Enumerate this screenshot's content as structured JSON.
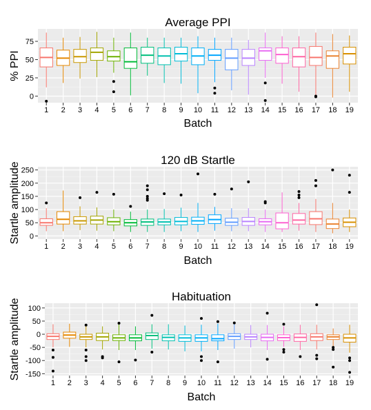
{
  "chart_data": [
    {
      "type": "boxplot",
      "title": "Average PPI",
      "xlabel": "Batch",
      "ylabel": "% PPI",
      "categories": [
        "1",
        "2",
        "3",
        "4",
        "5",
        "6",
        "7",
        "8",
        "9",
        "10",
        "11",
        "12",
        "13",
        "14",
        "15",
        "16",
        "17",
        "18",
        "19"
      ],
      "yticks": [
        0,
        25,
        50,
        75
      ],
      "ytick_labels": [
        "0",
        "25",
        "50",
        "75"
      ],
      "ylim": [
        -9,
        92
      ],
      "grid": true,
      "boxes": [
        {
          "min": 12,
          "q1": 40,
          "median": 53,
          "q3": 66,
          "max": 87,
          "outliers": [
            -7
          ]
        },
        {
          "min": 18,
          "q1": 42,
          "median": 52,
          "q3": 63,
          "max": 80,
          "outliers": []
        },
        {
          "min": 24,
          "q1": 46,
          "median": 54,
          "q3": 64,
          "max": 81,
          "outliers": []
        },
        {
          "min": 26,
          "q1": 49,
          "median": 60,
          "q3": 66,
          "max": 88,
          "outliers": []
        },
        {
          "min": 32,
          "q1": 48,
          "median": 54,
          "q3": 62,
          "max": 80,
          "outliers": [
            20,
            6
          ]
        },
        {
          "min": 1,
          "q1": 38,
          "median": 47,
          "q3": 66,
          "max": 87,
          "outliers": []
        },
        {
          "min": 28,
          "q1": 45,
          "median": 56,
          "q3": 67,
          "max": 80,
          "outliers": []
        },
        {
          "min": 18,
          "q1": 43,
          "median": 55,
          "q3": 66,
          "max": 80,
          "outliers": []
        },
        {
          "min": 17,
          "q1": 48,
          "median": 58,
          "q3": 67,
          "max": 80,
          "outliers": []
        },
        {
          "min": 4,
          "q1": 43,
          "median": 55,
          "q3": 66,
          "max": 82,
          "outliers": []
        },
        {
          "min": 19,
          "q1": 49,
          "median": 56,
          "q3": 64,
          "max": 80,
          "outliers": [
            11,
            4
          ]
        },
        {
          "min": 8,
          "q1": 36,
          "median": 52,
          "q3": 64,
          "max": 80,
          "outliers": []
        },
        {
          "min": 2,
          "q1": 42,
          "median": 52,
          "q3": 64,
          "max": 77,
          "outliers": []
        },
        {
          "min": 25,
          "q1": 49,
          "median": 62,
          "q3": 66,
          "max": 87,
          "outliers": [
            18,
            -6
          ]
        },
        {
          "min": 17,
          "q1": 45,
          "median": 57,
          "q3": 66,
          "max": 82,
          "outliers": []
        },
        {
          "min": 6,
          "q1": 40,
          "median": 54,
          "q3": 66,
          "max": 82,
          "outliers": []
        },
        {
          "min": 0,
          "q1": 42,
          "median": 53,
          "q3": 68,
          "max": 87,
          "outliers": [
            0,
            -1
          ]
        },
        {
          "min": -2,
          "q1": 38,
          "median": 55,
          "q3": 62,
          "max": 85,
          "outliers": []
        },
        {
          "min": 6,
          "q1": 44,
          "median": 58,
          "q3": 67,
          "max": 83,
          "outliers": []
        }
      ]
    },
    {
      "type": "boxplot",
      "title": "120 dB Startle",
      "xlabel": "Batch",
      "ylabel": "Startle amplitude",
      "categories": [
        "1",
        "2",
        "3",
        "4",
        "5",
        "6",
        "7",
        "8",
        "9",
        "10",
        "11",
        "12",
        "13",
        "14",
        "15",
        "16",
        "17",
        "18",
        "19"
      ],
      "yticks": [
        0,
        50,
        100,
        150,
        200,
        250
      ],
      "ytick_labels": [
        "0",
        "50",
        "100",
        "150",
        "200",
        "250"
      ],
      "ylim": [
        -12,
        262
      ],
      "grid": true,
      "boxes": [
        {
          "min": 18,
          "q1": 40,
          "median": 50,
          "q3": 65,
          "max": 105,
          "outliers": [
            125
          ]
        },
        {
          "min": 18,
          "q1": 45,
          "median": 63,
          "q3": 92,
          "max": 172,
          "outliers": []
        },
        {
          "min": 22,
          "q1": 45,
          "median": 57,
          "q3": 73,
          "max": 112,
          "outliers": [
            145
          ]
        },
        {
          "min": 20,
          "q1": 45,
          "median": 60,
          "q3": 75,
          "max": 108,
          "outliers": [
            165
          ]
        },
        {
          "min": 18,
          "q1": 42,
          "median": 54,
          "q3": 69,
          "max": 100,
          "outliers": [
            158
          ]
        },
        {
          "min": 15,
          "q1": 38,
          "median": 50,
          "q3": 62,
          "max": 92,
          "outliers": [
            112
          ]
        },
        {
          "min": 15,
          "q1": 40,
          "median": 53,
          "q3": 64,
          "max": 100,
          "outliers": [
            135,
            142,
            150,
            175,
            190
          ]
        },
        {
          "min": 15,
          "q1": 42,
          "median": 53,
          "q3": 64,
          "max": 102,
          "outliers": [
            160
          ]
        },
        {
          "min": 18,
          "q1": 42,
          "median": 55,
          "q3": 70,
          "max": 107,
          "outliers": [
            155
          ]
        },
        {
          "min": 15,
          "q1": 44,
          "median": 57,
          "q3": 71,
          "max": 125,
          "outliers": [
            235
          ]
        },
        {
          "min": 20,
          "q1": 47,
          "median": 62,
          "q3": 80,
          "max": 110,
          "outliers": [
            158
          ]
        },
        {
          "min": 18,
          "q1": 40,
          "median": 52,
          "q3": 67,
          "max": 105,
          "outliers": [
            178
          ]
        },
        {
          "min": 18,
          "q1": 40,
          "median": 55,
          "q3": 70,
          "max": 105,
          "outliers": [
            205
          ]
        },
        {
          "min": 15,
          "q1": 42,
          "median": 54,
          "q3": 65,
          "max": 100,
          "outliers": [
            125,
            130
          ]
        },
        {
          "min": 15,
          "q1": 27,
          "median": 50,
          "q3": 87,
          "max": 165,
          "outliers": []
        },
        {
          "min": 20,
          "q1": 45,
          "median": 60,
          "q3": 85,
          "max": 125,
          "outliers": [
            145,
            155,
            168
          ]
        },
        {
          "min": 15,
          "q1": 43,
          "median": 65,
          "q3": 92,
          "max": 140,
          "outliers": [
            190,
            210
          ]
        },
        {
          "min": 10,
          "q1": 28,
          "median": 45,
          "q3": 64,
          "max": 125,
          "outliers": [
            250
          ]
        },
        {
          "min": 15,
          "q1": 35,
          "median": 52,
          "q3": 68,
          "max": 100,
          "outliers": [
            165,
            230
          ]
        }
      ]
    },
    {
      "type": "boxplot",
      "title": "Habituation",
      "xlabel": "Batch",
      "ylabel": "Startle amplitude",
      "categories": [
        "1",
        "2",
        "3",
        "4",
        "5",
        "6",
        "7",
        "8",
        "9",
        "10",
        "11",
        "12",
        "13",
        "14",
        "15",
        "16",
        "17",
        "18",
        "19"
      ],
      "yticks": [
        -150,
        -100,
        -50,
        0,
        50,
        100
      ],
      "ytick_labels": [
        "-150",
        "-100",
        "-50",
        "0",
        "50",
        "100"
      ],
      "ylim": [
        -157,
        118
      ],
      "grid": true,
      "boxes": [
        {
          "min": -50,
          "q1": -20,
          "median": -8,
          "q3": 2,
          "max": 38,
          "outliers": [
            -60,
            -88,
            -140
          ]
        },
        {
          "min": -48,
          "q1": -15,
          "median": -3,
          "q3": 8,
          "max": 40,
          "outliers": []
        },
        {
          "min": -50,
          "q1": -20,
          "median": -10,
          "q3": 0,
          "max": 32,
          "outliers": [
            35,
            -60,
            -85,
            -100
          ]
        },
        {
          "min": -58,
          "q1": -24,
          "median": -10,
          "q3": 4,
          "max": 30,
          "outliers": [
            -85,
            -90
          ]
        },
        {
          "min": -60,
          "q1": -24,
          "median": -14,
          "q3": -2,
          "max": 38,
          "outliers": [
            42,
            -105
          ]
        },
        {
          "min": -60,
          "q1": -25,
          "median": -14,
          "q3": -2,
          "max": 30,
          "outliers": [
            -98
          ]
        },
        {
          "min": -55,
          "q1": -20,
          "median": -5,
          "q3": 5,
          "max": 38,
          "outliers": [
            72,
            -68
          ]
        },
        {
          "min": -58,
          "q1": -25,
          "median": -12,
          "q3": -2,
          "max": 38,
          "outliers": []
        },
        {
          "min": -65,
          "q1": -27,
          "median": -14,
          "q3": -2,
          "max": 33,
          "outliers": []
        },
        {
          "min": -65,
          "q1": -27,
          "median": -14,
          "q3": -2,
          "max": 36,
          "outliers": [
            60,
            -85,
            -100
          ]
        },
        {
          "min": -60,
          "q1": -25,
          "median": -17,
          "q3": -2,
          "max": 40,
          "outliers": [
            48,
            -105
          ]
        },
        {
          "min": -55,
          "q1": -20,
          "median": -8,
          "q3": 2,
          "max": 38,
          "outliers": [
            43
          ]
        },
        {
          "min": -50,
          "q1": -20,
          "median": -10,
          "q3": 0,
          "max": 35,
          "outliers": []
        },
        {
          "min": -60,
          "q1": -25,
          "median": -12,
          "q3": 0,
          "max": 35,
          "outliers": [
            80,
            -95
          ]
        },
        {
          "min": -48,
          "q1": -24,
          "median": -13,
          "q3": -2,
          "max": 30,
          "outliers": [
            38,
            -58,
            -68
          ]
        },
        {
          "min": -60,
          "q1": -27,
          "median": -12,
          "q3": 1,
          "max": 36,
          "outliers": [
            -85
          ]
        },
        {
          "min": -58,
          "q1": -24,
          "median": -10,
          "q3": 2,
          "max": 36,
          "outliers": [
            112,
            -80,
            -93
          ]
        },
        {
          "min": -45,
          "q1": -20,
          "median": -10,
          "q3": -2,
          "max": 22,
          "outliers": [
            -50,
            -58,
            -125
          ]
        },
        {
          "min": -70,
          "q1": -30,
          "median": -14,
          "q3": 0,
          "max": 36,
          "outliers": [
            -90,
            -100,
            -145
          ]
        }
      ]
    }
  ],
  "batch_colors": [
    "#F8766D",
    "#E58700",
    "#C99800",
    "#A3A500",
    "#6BB100",
    "#00BA38",
    "#00BF7D",
    "#00C0AF",
    "#00BCD8",
    "#00B0F6",
    "#00A5FF",
    "#619CFF",
    "#B983FF",
    "#E76BF3",
    "#FD61D1",
    "#FF67A4",
    "#F8766D",
    "#EA8331",
    "#D89000"
  ]
}
